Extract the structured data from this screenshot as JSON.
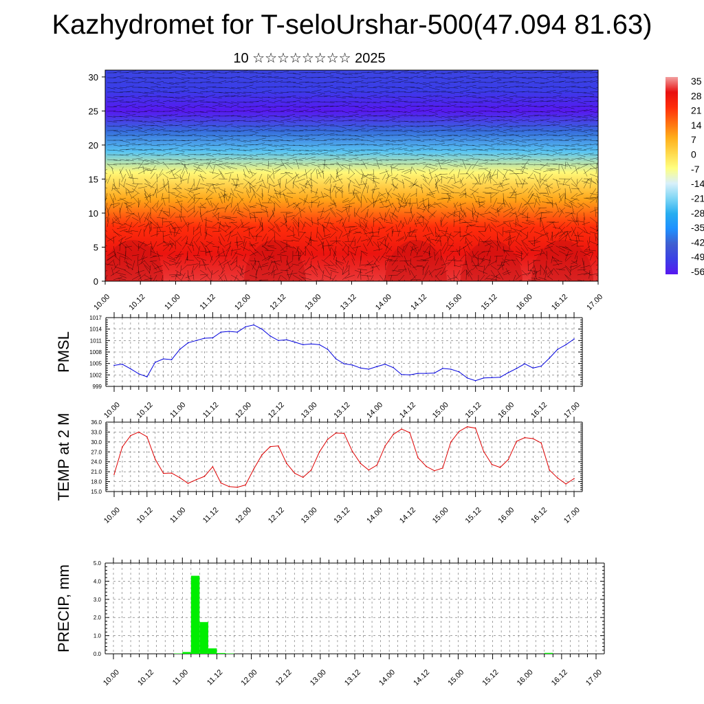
{
  "title": "Kazhydromet for T-seloUrshar-500(47.094 81.63)",
  "subtitle": "10 ☆☆☆☆☆☆☆☆ 2025",
  "time_labels": [
    "10.00",
    "10.12",
    "11.00",
    "11.12",
    "12.00",
    "12.12",
    "13.00",
    "13.12",
    "14.00",
    "14.12",
    "15.00",
    "15.12",
    "16.00",
    "16.12",
    "17.00"
  ],
  "colors": {
    "pmsl_line": "#0000dd",
    "temp_line": "#dd0000",
    "precip_bar": "#00ee00",
    "grid": "#555555",
    "wind_barbs": "#000000"
  },
  "chart_data": [
    {
      "type": "heatmap",
      "name": "vertical cross-section",
      "y_range": [
        0,
        31
      ],
      "y_ticks": [
        "0",
        "5",
        "10",
        "15",
        "20",
        "25",
        "30"
      ],
      "x_ticks": [
        "10.00",
        "10.12",
        "11.00",
        "11.12",
        "12.00",
        "12.12",
        "13.00",
        "13.12",
        "14.00",
        "14.12",
        "15.00",
        "15.12",
        "16.00",
        "16.12",
        "17.00"
      ],
      "colorbar_labels": [
        "35",
        "28",
        "21",
        "14",
        "7",
        "0",
        "-7",
        "-14",
        "-21",
        "-28",
        "-35",
        "-42",
        "-49",
        "-56"
      ],
      "overlay": "wind barbs",
      "levels_profile": [
        {
          "level": 0,
          "value": 30
        },
        {
          "level": 4,
          "value": 27
        },
        {
          "level": 8,
          "value": 21
        },
        {
          "level": 12,
          "value": 8
        },
        {
          "level": 16,
          "value": -6
        },
        {
          "level": 19,
          "value": -24
        },
        {
          "level": 22,
          "value": -40
        },
        {
          "level": 25,
          "value": -56
        },
        {
          "level": 28,
          "value": -50
        },
        {
          "level": 31,
          "value": -48
        }
      ]
    },
    {
      "type": "line",
      "ylabel": "PMSL",
      "ylim": [
        999,
        1017
      ],
      "y_ticks": [
        "999",
        "1002",
        "1005",
        "1008",
        "1011",
        "1014",
        "1017"
      ],
      "x_ticks": [
        "10.00",
        "10.12",
        "11.00",
        "11.12",
        "12.00",
        "12.12",
        "13.00",
        "13.12",
        "14.00",
        "14.12",
        "15.00",
        "15.12",
        "16.00",
        "16.12",
        "17.00"
      ],
      "x_step_hours": 3,
      "series": [
        {
          "values": [
            1004.5,
            1004.8,
            1003.6,
            1002.3,
            1001.5,
            1005.3,
            1006.2,
            1006.0,
            1008.7,
            1010.4,
            1011.0,
            1011.6,
            1011.7,
            1013.2,
            1013.4,
            1013.2,
            1014.6,
            1015.1,
            1014.0,
            1012.2,
            1011.0,
            1011.2,
            1010.6,
            1009.9,
            1010.1,
            1009.9,
            1008.7,
            1006.2,
            1004.9,
            1004.6,
            1003.8,
            1003.5,
            1004.2,
            1004.8,
            1003.9,
            1002.1,
            1002.0,
            1002.4,
            1002.4,
            1002.5,
            1003.7,
            1003.5,
            1002.8,
            1001.2,
            1000.5,
            1001.2,
            1001.3,
            1001.4,
            1002.6,
            1003.7,
            1004.9,
            1003.8,
            1004.3,
            1006.4,
            1008.7,
            1009.9,
            1011.4
          ]
        }
      ]
    },
    {
      "type": "line",
      "ylabel": "TEMP at 2 M",
      "ylim": [
        15,
        36
      ],
      "y_ticks": [
        "15.0",
        "18.0",
        "21.0",
        "24.0",
        "27.0",
        "30.0",
        "33.0",
        "36.0"
      ],
      "x_ticks": [
        "10.00",
        "10.12",
        "11.00",
        "11.12",
        "12.00",
        "12.12",
        "13.00",
        "13.12",
        "14.00",
        "14.12",
        "15.00",
        "15.12",
        "16.00",
        "16.12",
        "17.00"
      ],
      "x_step_hours": 3,
      "series": [
        {
          "values": [
            20.2,
            28.5,
            31.9,
            33.0,
            31.6,
            24.8,
            20.5,
            20.6,
            19.2,
            17.5,
            18.6,
            19.6,
            22.5,
            17.6,
            16.5,
            16.3,
            17.0,
            21.8,
            26.1,
            28.6,
            28.8,
            23.5,
            20.5,
            19.3,
            21.5,
            27.0,
            30.8,
            32.7,
            32.6,
            27.2,
            23.5,
            21.5,
            23.0,
            28.8,
            32.3,
            33.9,
            32.8,
            25.2,
            22.6,
            21.3,
            22.1,
            30.0,
            33.2,
            34.6,
            34.2,
            27.1,
            23.2,
            22.3,
            24.7,
            30.2,
            31.3,
            31.0,
            29.7,
            21.5,
            19.1,
            17.3,
            18.9
          ]
        }
      ]
    },
    {
      "type": "bar",
      "ylabel": "PRECIP, mm",
      "ylim": [
        0,
        5
      ],
      "y_ticks": [
        "0.0",
        "1.0",
        "2.0",
        "3.0",
        "4.0",
        "5.0"
      ],
      "x_ticks": [
        "10.00",
        "10.12",
        "11.00",
        "11.12",
        "12.00",
        "12.12",
        "13.00",
        "13.12",
        "14.00",
        "14.12",
        "15.00",
        "15.12",
        "16.00",
        "16.12",
        "17.00"
      ],
      "x_step_hours": 3,
      "values": [
        0,
        0,
        0,
        0,
        0,
        0,
        0,
        0.02,
        0.1,
        4.3,
        1.75,
        0.3,
        0.04,
        0.02,
        0,
        0,
        0,
        0,
        0,
        0,
        0,
        0,
        0,
        0,
        0,
        0,
        0,
        0,
        0,
        0,
        0,
        0,
        0,
        0,
        0,
        0,
        0,
        0,
        0,
        0,
        0,
        0,
        0,
        0,
        0,
        0,
        0,
        0,
        0,
        0,
        0.05,
        0,
        0,
        0,
        0,
        0
      ]
    }
  ]
}
